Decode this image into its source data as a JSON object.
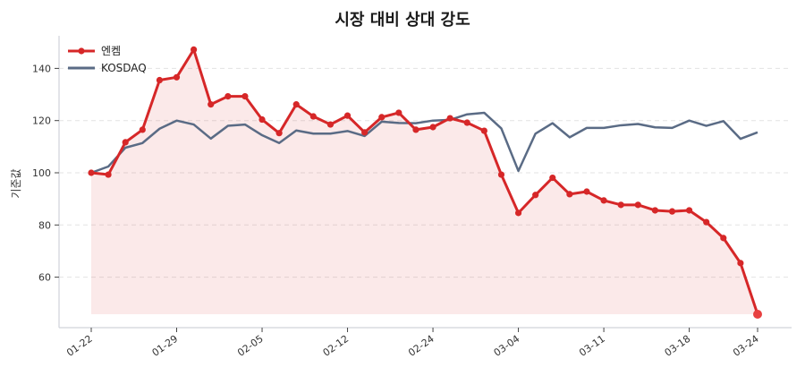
{
  "title": "시장 대비 상대 강도",
  "chart_data": {
    "type": "line",
    "title": "시장 대비 상대 강도",
    "xlabel": "",
    "ylabel": "기준값",
    "ylim": [
      42,
      152
    ],
    "yticks": [
      60,
      80,
      100,
      120,
      140
    ],
    "grid": true,
    "legend_position": "upper left",
    "x_tick_labels": [
      "01-22",
      "01-29",
      "02-05",
      "02-12",
      "02-24",
      "03-04",
      "03-11",
      "03-18",
      "03-24"
    ],
    "x_tick_indices": [
      0,
      5,
      10,
      15,
      20,
      25,
      30,
      35,
      39
    ],
    "n_points": 40,
    "series": [
      {
        "name": "엔켐",
        "color": "#d62728",
        "fill": true,
        "markers": true,
        "values": [
          100.0,
          99.3,
          111.7,
          116.5,
          135.5,
          136.6,
          147.2,
          126.2,
          129.3,
          129.3,
          120.4,
          115.2,
          126.2,
          121.6,
          118.5,
          121.9,
          115.5,
          121.3,
          123.0,
          116.5,
          117.5,
          120.9,
          119.2,
          116.1,
          99.3,
          84.6,
          91.5,
          98.1,
          91.8,
          92.8,
          89.4,
          87.7,
          87.7,
          85.6,
          85.2,
          85.6,
          81.1,
          75.0,
          65.4,
          45.8
        ]
      },
      {
        "name": "KOSDAQ",
        "color": "#5a6b85",
        "fill": false,
        "markers": false,
        "values": [
          100.0,
          102.4,
          109.6,
          111.4,
          116.9,
          120.0,
          118.5,
          113.1,
          118.0,
          118.5,
          114.4,
          111.4,
          116.2,
          115.0,
          115.0,
          116.0,
          114.1,
          119.6,
          119.1,
          119.0,
          120.0,
          120.3,
          122.4,
          123.0,
          117.0,
          100.7,
          115.0,
          119.0,
          113.6,
          117.2,
          117.2,
          118.2,
          118.7,
          117.4,
          117.2,
          120.0,
          118.0,
          119.8,
          113.0,
          115.5
        ]
      }
    ]
  },
  "legend": {
    "items": [
      {
        "label": "엔켐",
        "color": "#d62728"
      },
      {
        "label": "KOSDAQ",
        "color": "#5a6b85"
      }
    ]
  }
}
